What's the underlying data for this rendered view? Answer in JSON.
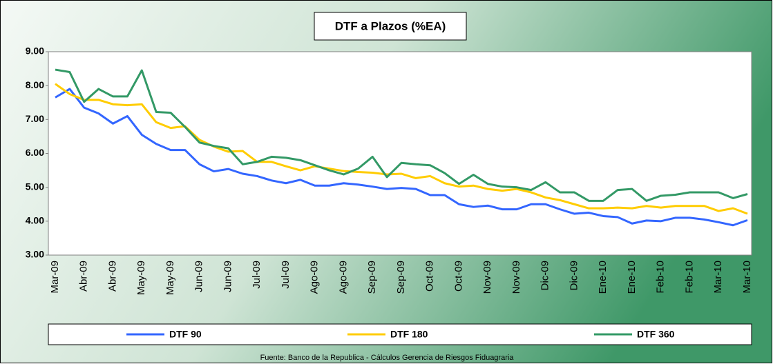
{
  "chart_data": {
    "type": "line",
    "title": "DTF a Plazos (%EA)",
    "footnote": "Fuente: Banco de la Republica - Cálculos Gerencia de Riesgos Fiduagraria",
    "categories": [
      "Mar-09",
      null,
      "Abr-09",
      null,
      "Abr-09",
      null,
      "May-09",
      null,
      "May-09",
      null,
      "Jun-09",
      null,
      "Jun-09",
      null,
      "Jul-09",
      null,
      "Jul-09",
      null,
      "Ago-09",
      null,
      "Ago-09",
      null,
      "Sep-09",
      null,
      "Sep-09",
      null,
      "Oct-09",
      null,
      "Oct-09",
      null,
      "Nov-09",
      null,
      "Nov-09",
      null,
      "Dic-09",
      null,
      "Dic-09",
      null,
      "Ene-10",
      null,
      "Ene-10",
      null,
      "Feb-10",
      null,
      "Feb-10",
      null,
      "Mar-10",
      null,
      "Mar-10"
    ],
    "series": [
      {
        "name": "DTF 90",
        "color": "#3366ff",
        "values": [
          7.65,
          7.9,
          7.35,
          7.18,
          6.88,
          7.1,
          6.55,
          6.28,
          6.1,
          6.1,
          5.68,
          5.47,
          5.54,
          5.4,
          5.33,
          5.2,
          5.12,
          5.22,
          5.05,
          5.05,
          5.12,
          5.08,
          5.02,
          4.95,
          4.98,
          4.95,
          4.77,
          4.77,
          4.5,
          4.42,
          4.46,
          4.35,
          4.35,
          4.5,
          4.5,
          4.35,
          4.22,
          4.25,
          4.15,
          4.12,
          3.93,
          4.02,
          4.0,
          4.1,
          4.1,
          4.05,
          3.97,
          3.88,
          4.03
        ]
      },
      {
        "name": "DTF 180",
        "color": "#ffcc00",
        "values": [
          8.05,
          7.75,
          7.58,
          7.58,
          7.45,
          7.42,
          7.45,
          6.92,
          6.75,
          6.8,
          6.4,
          6.2,
          6.05,
          6.07,
          5.75,
          5.75,
          5.62,
          5.5,
          5.62,
          5.55,
          5.48,
          5.45,
          5.43,
          5.38,
          5.4,
          5.27,
          5.33,
          5.12,
          5.02,
          5.05,
          4.95,
          4.9,
          4.95,
          4.85,
          4.7,
          4.62,
          4.5,
          4.38,
          4.38,
          4.4,
          4.38,
          4.45,
          4.4,
          4.45,
          4.45,
          4.45,
          4.3,
          4.38,
          4.22
        ]
      },
      {
        "name": "DTF 360",
        "color": "#339966",
        "values": [
          8.47,
          8.4,
          7.52,
          7.9,
          7.68,
          7.68,
          8.45,
          7.22,
          7.2,
          6.78,
          6.32,
          6.22,
          6.15,
          5.68,
          5.75,
          5.9,
          5.87,
          5.8,
          5.65,
          5.5,
          5.38,
          5.55,
          5.9,
          5.3,
          5.72,
          5.68,
          5.65,
          5.42,
          5.1,
          5.37,
          5.1,
          5.02,
          5.0,
          4.92,
          5.15,
          4.85,
          4.85,
          4.6,
          4.6,
          4.92,
          4.95,
          4.6,
          4.75,
          4.78,
          4.85,
          4.85,
          4.85,
          4.68,
          4.8
        ]
      }
    ],
    "ylim": [
      3,
      9
    ],
    "yticks": [
      {
        "value": 3,
        "label": "3.00"
      },
      {
        "value": 4,
        "label": "4.00"
      },
      {
        "value": 5,
        "label": "5.00"
      },
      {
        "value": 6,
        "label": "6.00"
      },
      {
        "value": 7,
        "label": "7.00"
      },
      {
        "value": 8,
        "label": "8.00"
      },
      {
        "value": 9,
        "label": "9.00"
      }
    ],
    "grid": false,
    "legend": "bottom"
  }
}
